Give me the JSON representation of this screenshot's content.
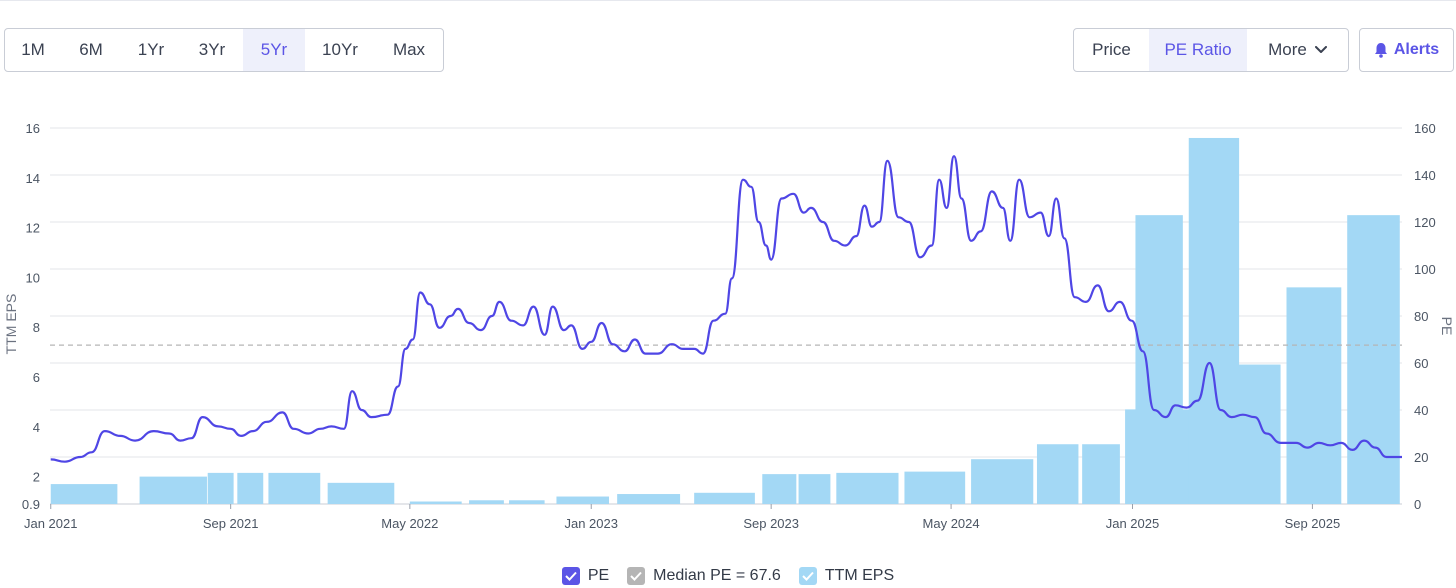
{
  "toolbar": {
    "ranges": [
      "1M",
      "6M",
      "1Yr",
      "3Yr",
      "5Yr",
      "10Yr",
      "Max"
    ],
    "active_range": "5Yr",
    "views": {
      "price": "Price",
      "pe_ratio": "PE Ratio",
      "more": "More"
    },
    "active_view": "PE Ratio",
    "alerts_label": "Alerts"
  },
  "colors": {
    "accent": "#5b55e6",
    "pe_line": "#4f46e5",
    "eps_bar": "#a3d8f5",
    "median": "#b5b5b5"
  },
  "legend": {
    "pe": "PE",
    "median": "Median PE = 67.6",
    "eps": "TTM EPS"
  },
  "chart_data": {
    "type": "bar+line",
    "xlabel": "",
    "y_left_label": "TTM EPS",
    "y_right_label": "PE",
    "y_left_ticks": [
      0.9,
      2,
      4,
      6,
      8,
      10,
      12,
      14,
      16
    ],
    "y_right_ticks": [
      0,
      20,
      40,
      60,
      80,
      100,
      120,
      140,
      160
    ],
    "y_left_range": [
      0.9,
      16
    ],
    "y_right_range": [
      0,
      160
    ],
    "x_range": [
      "2020-12-31",
      "2025-12-31"
    ],
    "x_ticks": [
      {
        "label": "Jan 2021",
        "date": "2021-01-01"
      },
      {
        "label": "Sep 2021",
        "date": "2021-09-01"
      },
      {
        "label": "May 2022",
        "date": "2022-05-01"
      },
      {
        "label": "Jan 2023",
        "date": "2023-01-01"
      },
      {
        "label": "Sep 2023",
        "date": "2023-09-01"
      },
      {
        "label": "May 2024",
        "date": "2024-05-01"
      },
      {
        "label": "Jan 2025",
        "date": "2025-01-01"
      },
      {
        "label": "Sep 2025",
        "date": "2025-09-01"
      }
    ],
    "median_pe": 67.6,
    "grid": true,
    "legend_position": "bottom",
    "eps_bars": [
      {
        "start": "2021-01-01",
        "end": "2021-04-01",
        "value": 1.7
      },
      {
        "start": "2021-05-01",
        "end": "2021-07-31",
        "value": 2.0
      },
      {
        "start": "2021-08-01",
        "end": "2021-09-05",
        "value": 2.15
      },
      {
        "start": "2021-09-10",
        "end": "2021-10-15",
        "value": 2.15
      },
      {
        "start": "2021-10-22",
        "end": "2021-12-31",
        "value": 2.15
      },
      {
        "start": "2022-01-10",
        "end": "2022-04-10",
        "value": 1.75
      },
      {
        "start": "2022-05-01",
        "end": "2022-07-10",
        "value": 1.0
      },
      {
        "start": "2022-07-20",
        "end": "2022-09-05",
        "value": 1.05
      },
      {
        "start": "2022-09-12",
        "end": "2022-10-30",
        "value": 1.05
      },
      {
        "start": "2022-11-15",
        "end": "2023-01-25",
        "value": 1.2
      },
      {
        "start": "2023-02-05",
        "end": "2023-05-01",
        "value": 1.3
      },
      {
        "start": "2023-05-20",
        "end": "2023-08-10",
        "value": 1.35
      },
      {
        "start": "2023-08-20",
        "end": "2023-10-05",
        "value": 2.1
      },
      {
        "start": "2023-10-08",
        "end": "2023-11-20",
        "value": 2.1
      },
      {
        "start": "2023-11-28",
        "end": "2024-02-20",
        "value": 2.15
      },
      {
        "start": "2024-02-28",
        "end": "2024-05-20",
        "value": 2.2
      },
      {
        "start": "2024-05-28",
        "end": "2024-08-20",
        "value": 2.7
      },
      {
        "start": "2024-08-25",
        "end": "2024-10-20",
        "value": 3.3
      },
      {
        "start": "2024-10-25",
        "end": "2024-12-15",
        "value": 3.3
      },
      {
        "start": "2024-12-22",
        "end": "2025-03-30",
        "value": 4.7
      },
      {
        "start": "2025-04-08",
        "end": "2025-07-20",
        "value": 6.5
      },
      {
        "start": "2025-07-28",
        "end": "2025-10-10",
        "value": 9.6
      },
      {
        "start": "2025-10-18",
        "end": "2025-12-28",
        "value": 12.5
      },
      {
        "start": "2025-01-05",
        "end": "2025-03-10",
        "value": 12.5
      },
      {
        "start": "2025-03-18",
        "end": "2025-05-25",
        "value": 15.6
      }
    ],
    "pe_series": [
      [
        "2021-01-01",
        19
      ],
      [
        "2021-01-20",
        18
      ],
      [
        "2021-02-10",
        20
      ],
      [
        "2021-02-25",
        22
      ],
      [
        "2021-03-15",
        31
      ],
      [
        "2021-04-05",
        29
      ],
      [
        "2021-04-25",
        27
      ],
      [
        "2021-05-20",
        31
      ],
      [
        "2021-06-10",
        30
      ],
      [
        "2021-06-25",
        27
      ],
      [
        "2021-07-10",
        28
      ],
      [
        "2021-07-25",
        37
      ],
      [
        "2021-08-15",
        33
      ],
      [
        "2021-09-01",
        32
      ],
      [
        "2021-09-15",
        29
      ],
      [
        "2021-10-01",
        31
      ],
      [
        "2021-10-20",
        35
      ],
      [
        "2021-11-10",
        39
      ],
      [
        "2021-11-25",
        32
      ],
      [
        "2021-12-15",
        30
      ],
      [
        "2021-12-31",
        32
      ],
      [
        "2022-01-15",
        33
      ],
      [
        "2022-02-01",
        32
      ],
      [
        "2022-02-12",
        48
      ],
      [
        "2022-02-25",
        40
      ],
      [
        "2022-03-10",
        37
      ],
      [
        "2022-04-01",
        38
      ],
      [
        "2022-04-15",
        50
      ],
      [
        "2022-04-25",
        66
      ],
      [
        "2022-05-05",
        70
      ],
      [
        "2022-05-15",
        90
      ],
      [
        "2022-05-28",
        85
      ],
      [
        "2022-06-10",
        75
      ],
      [
        "2022-06-25",
        80
      ],
      [
        "2022-07-05",
        83
      ],
      [
        "2022-07-20",
        77
      ],
      [
        "2022-08-05",
        74
      ],
      [
        "2022-08-20",
        80
      ],
      [
        "2022-08-30",
        86
      ],
      [
        "2022-09-15",
        78
      ],
      [
        "2022-10-01",
        76
      ],
      [
        "2022-10-15",
        84
      ],
      [
        "2022-10-30",
        72
      ],
      [
        "2022-11-10",
        84
      ],
      [
        "2022-11-25",
        74
      ],
      [
        "2022-12-05",
        76
      ],
      [
        "2022-12-20",
        66
      ],
      [
        "2023-01-01",
        69
      ],
      [
        "2023-01-15",
        77
      ],
      [
        "2023-01-30",
        68
      ],
      [
        "2023-02-15",
        65
      ],
      [
        "2023-03-01",
        70
      ],
      [
        "2023-03-15",
        64
      ],
      [
        "2023-04-01",
        64
      ],
      [
        "2023-04-20",
        68
      ],
      [
        "2023-05-05",
        66
      ],
      [
        "2023-05-20",
        66
      ],
      [
        "2023-06-01",
        64
      ],
      [
        "2023-06-15",
        78
      ],
      [
        "2023-07-01",
        81
      ],
      [
        "2023-07-10",
        96
      ],
      [
        "2023-07-25",
        138
      ],
      [
        "2023-08-05",
        135
      ],
      [
        "2023-08-15",
        120
      ],
      [
        "2023-08-25",
        110
      ],
      [
        "2023-09-01",
        104
      ],
      [
        "2023-09-15",
        130
      ],
      [
        "2023-10-01",
        132
      ],
      [
        "2023-10-15",
        124
      ],
      [
        "2023-10-25",
        126
      ],
      [
        "2023-11-10",
        120
      ],
      [
        "2023-11-25",
        112
      ],
      [
        "2023-12-10",
        110
      ],
      [
        "2023-12-25",
        114
      ],
      [
        "2024-01-05",
        127
      ],
      [
        "2024-01-15",
        118
      ],
      [
        "2024-01-25",
        120
      ],
      [
        "2024-02-05",
        146
      ],
      [
        "2024-02-20",
        122
      ],
      [
        "2024-03-05",
        120
      ],
      [
        "2024-03-20",
        105
      ],
      [
        "2024-04-05",
        110
      ],
      [
        "2024-04-15",
        138
      ],
      [
        "2024-04-25",
        126
      ],
      [
        "2024-05-05",
        148
      ],
      [
        "2024-05-15",
        130
      ],
      [
        "2024-05-28",
        112
      ],
      [
        "2024-06-10",
        116
      ],
      [
        "2024-06-25",
        133
      ],
      [
        "2024-07-10",
        126
      ],
      [
        "2024-07-20",
        112
      ],
      [
        "2024-08-01",
        138
      ],
      [
        "2024-08-15",
        122
      ],
      [
        "2024-08-30",
        124
      ],
      [
        "2024-09-10",
        114
      ],
      [
        "2024-09-20",
        130
      ],
      [
        "2024-10-01",
        113
      ],
      [
        "2024-10-15",
        88
      ],
      [
        "2024-10-30",
        86
      ],
      [
        "2024-11-15",
        93
      ],
      [
        "2024-11-30",
        82
      ],
      [
        "2024-12-15",
        86
      ],
      [
        "2024-12-31",
        78
      ],
      [
        "2025-01-15",
        65
      ],
      [
        "2025-01-30",
        40
      ],
      [
        "2025-02-15",
        37
      ],
      [
        "2025-02-28",
        42
      ],
      [
        "2025-03-15",
        41
      ],
      [
        "2025-03-30",
        44
      ],
      [
        "2025-04-15",
        60
      ],
      [
        "2025-04-30",
        40
      ],
      [
        "2025-05-15",
        37
      ],
      [
        "2025-05-30",
        38
      ],
      [
        "2025-06-15",
        37
      ],
      [
        "2025-07-01",
        30
      ],
      [
        "2025-07-20",
        26
      ],
      [
        "2025-08-10",
        26
      ],
      [
        "2025-08-25",
        24
      ],
      [
        "2025-09-10",
        26
      ],
      [
        "2025-09-25",
        25
      ],
      [
        "2025-10-10",
        26
      ],
      [
        "2025-10-25",
        23
      ],
      [
        "2025-11-10",
        27
      ],
      [
        "2025-11-25",
        24
      ],
      [
        "2025-12-10",
        20
      ],
      [
        "2025-12-31",
        20
      ]
    ]
  }
}
